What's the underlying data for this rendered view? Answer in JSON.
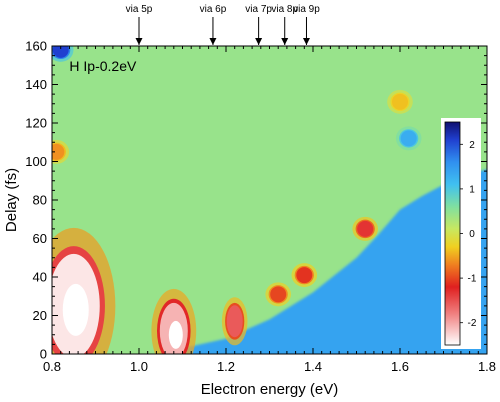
{
  "chart_data": {
    "type": "heatmap",
    "inset_label": "H  Ip-0.2eV",
    "xlabel": "Electron energy (eV)",
    "ylabel": "Delay (fs)",
    "xlim": [
      0.8,
      1.8
    ],
    "ylim": [
      0,
      160
    ],
    "x_ticks": [
      "0.8",
      "1.0",
      "1.2",
      "1.4",
      "1.6",
      "1.8"
    ],
    "y_ticks": [
      "0",
      "20",
      "40",
      "60",
      "80",
      "100",
      "120",
      "140",
      "160"
    ],
    "colorbar": {
      "range": [
        -2.5,
        2.5
      ],
      "ticks": [
        "2",
        "1",
        "0",
        "-1",
        "-2"
      ],
      "tick_values": [
        2,
        1,
        0,
        -1,
        -2
      ]
    },
    "background_value": 0.2,
    "boundary_points": [
      [
        1.05,
        0
      ],
      [
        1.1,
        3
      ],
      [
        1.2,
        8
      ],
      [
        1.3,
        18
      ],
      [
        1.4,
        32
      ],
      [
        1.5,
        50
      ],
      [
        1.55,
        62
      ],
      [
        1.6,
        75
      ],
      [
        1.65,
        82
      ],
      [
        1.7,
        88
      ],
      [
        1.75,
        93
      ],
      [
        1.8,
        96
      ]
    ],
    "lower_right_value": 1.1,
    "features": [
      {
        "x": 0.85,
        "y": 25,
        "value": -2.4
      },
      {
        "x": 0.81,
        "y": 105,
        "value": -0.9
      },
      {
        "x": 0.82,
        "y": 158,
        "value": 2.0
      },
      {
        "x": 1.08,
        "y": 12,
        "value": -2.2
      },
      {
        "x": 1.22,
        "y": 17,
        "value": -1.8
      },
      {
        "x": 1.32,
        "y": 31,
        "value": -1.3
      },
      {
        "x": 1.38,
        "y": 41,
        "value": -1.4
      },
      {
        "x": 1.52,
        "y": 65,
        "value": -1.6
      },
      {
        "x": 1.6,
        "y": 131,
        "value": -0.6
      },
      {
        "x": 1.62,
        "y": 112,
        "value": 1.0
      }
    ],
    "annotations": [
      {
        "label": "via 5p",
        "x": 1.0
      },
      {
        "label": "via 6p",
        "x": 1.17
      },
      {
        "label": "via 7p",
        "x": 1.275
      },
      {
        "label": "via 8p",
        "x": 1.335
      },
      {
        "label": "via 9p",
        "x": 1.385
      }
    ]
  }
}
